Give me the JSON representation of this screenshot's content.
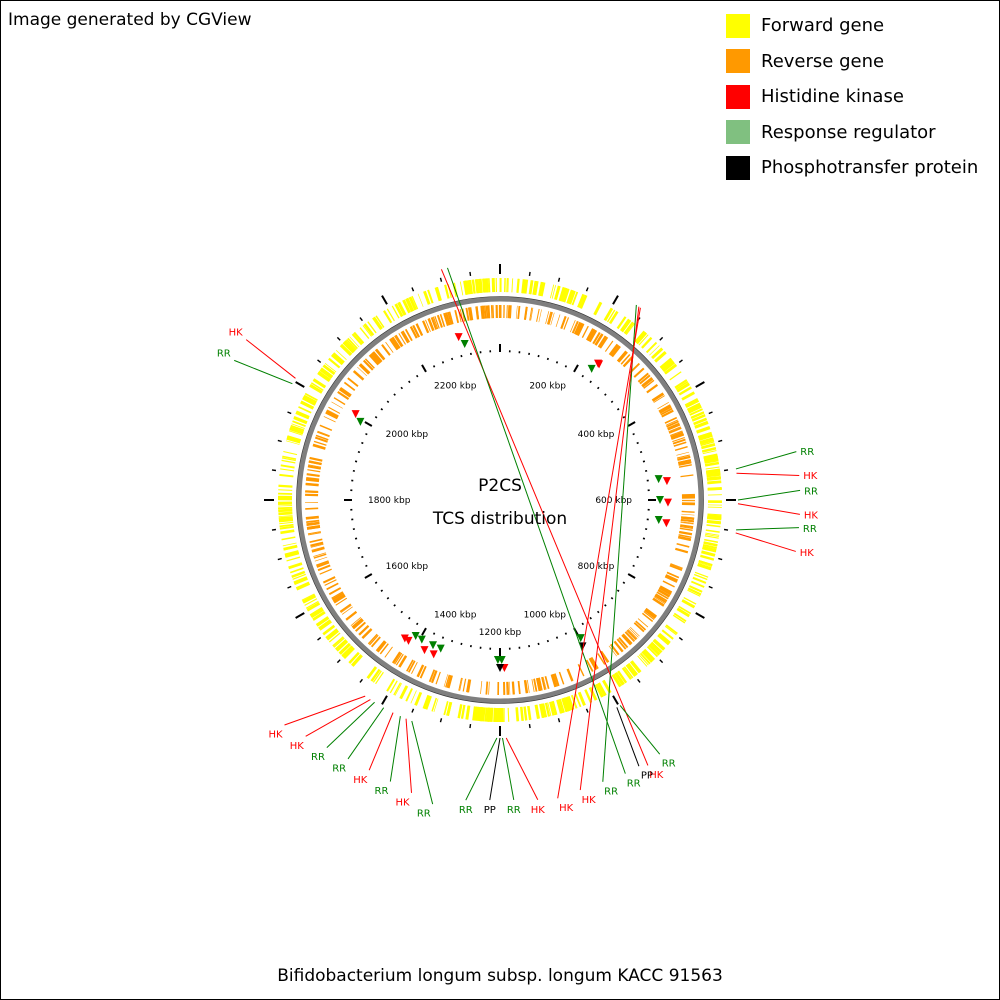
{
  "credit": "Image generated by CGView",
  "caption": "Bifidobacterium longum subsp. longum KACC 91563",
  "center_title": "P2CS",
  "center_subtitle": "TCS distribution",
  "colors": {
    "forward": "#ffff00",
    "reverse": "#ff9900",
    "hk": "#ff0000",
    "rr": "#008000",
    "rr_legend": "#80c080",
    "pp": "#000000",
    "backbone": "#7f7f7f"
  },
  "legend": [
    {
      "label": "Forward gene",
      "color": "#ffff00"
    },
    {
      "label": "Reverse gene",
      "color": "#ff9900"
    },
    {
      "label": "Histidine kinase",
      "color": "#ff0000"
    },
    {
      "label": "Response regulator",
      "color": "#80c080"
    },
    {
      "label": "Phosphotransfer protein",
      "color": "#000000"
    }
  ],
  "chart_data": {
    "type": "circular-genome-map",
    "genome_length_kbp": 2400,
    "tick_labels": [
      {
        "kbp": 200,
        "label": "200 kbp"
      },
      {
        "kbp": 400,
        "label": "400 kbp"
      },
      {
        "kbp": 600,
        "label": "600 kbp"
      },
      {
        "kbp": 800,
        "label": "800 kbp"
      },
      {
        "kbp": 1000,
        "label": "1000 kbp"
      },
      {
        "kbp": 1200,
        "label": "1200 kbp"
      },
      {
        "kbp": 1400,
        "label": "1400 kbp"
      },
      {
        "kbp": 1600,
        "label": "1600 kbp"
      },
      {
        "kbp": 1800,
        "label": "1800 kbp"
      },
      {
        "kbp": 2000,
        "label": "2000 kbp"
      },
      {
        "kbp": 2200,
        "label": "2200 kbp"
      }
    ],
    "features": [
      {
        "kbp": 2305,
        "type": "HK",
        "label": "HK"
      },
      {
        "kbp": 2315,
        "type": "RR",
        "label": "RR"
      },
      {
        "kbp": 233,
        "type": "RR",
        "label": "RR"
      },
      {
        "kbp": 238,
        "type": "HK",
        "label": "HK"
      },
      {
        "kbp": 241,
        "type": "HK",
        "label": "HK"
      },
      {
        "kbp": 550,
        "type": "RR",
        "label": "RR"
      },
      {
        "kbp": 557,
        "type": "HK",
        "label": "HK"
      },
      {
        "kbp": 600,
        "type": "RR",
        "label": "RR"
      },
      {
        "kbp": 606,
        "type": "HK",
        "label": "HK"
      },
      {
        "kbp": 648,
        "type": "RR",
        "label": "RR"
      },
      {
        "kbp": 653,
        "type": "HK",
        "label": "HK"
      },
      {
        "kbp": 998,
        "type": "RR",
        "label": "RR"
      },
      {
        "kbp": 1004,
        "type": "PP",
        "label": "PP"
      },
      {
        "kbp": 1190,
        "type": "HK",
        "label": "HK"
      },
      {
        "kbp": 1196,
        "type": "RR",
        "label": "RR"
      },
      {
        "kbp": 1200,
        "type": "PP",
        "label": "PP"
      },
      {
        "kbp": 1205,
        "type": "RR",
        "label": "RR"
      },
      {
        "kbp": 1345,
        "type": "RR",
        "label": "RR"
      },
      {
        "kbp": 1355,
        "type": "HK",
        "label": "HK"
      },
      {
        "kbp": 1365,
        "type": "RR",
        "label": "RR"
      },
      {
        "kbp": 1378,
        "type": "HK",
        "label": "HK"
      },
      {
        "kbp": 1395,
        "type": "RR",
        "label": "RR"
      },
      {
        "kbp": 1412,
        "type": "RR",
        "label": "RR"
      },
      {
        "kbp": 1420,
        "type": "HK",
        "label": "HK"
      },
      {
        "kbp": 1430,
        "type": "HK",
        "label": "HK"
      },
      {
        "kbp": 1995,
        "type": "RR",
        "label": "RR"
      },
      {
        "kbp": 2005,
        "type": "HK",
        "label": "HK"
      }
    ]
  }
}
